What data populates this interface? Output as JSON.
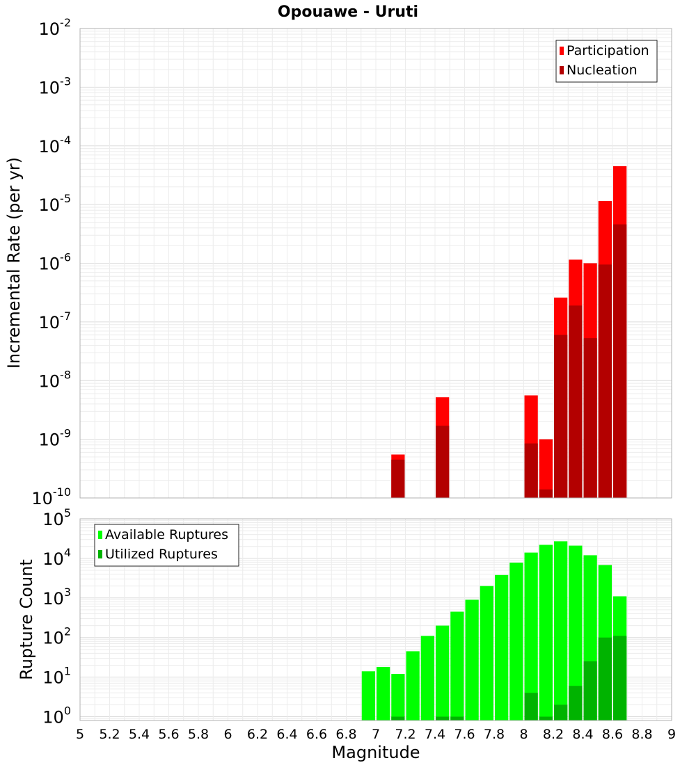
{
  "chart_data": [
    {
      "type": "bar",
      "title": "Opouawe - Uruti",
      "xlabel": "",
      "ylabel": "Incremental Rate (per yr)",
      "y_scale": "log",
      "ylim": [
        1e-10,
        0.01
      ],
      "xlim": [
        5,
        9
      ],
      "y_ticks": [
        {
          "base": "10",
          "exp": "-10"
        },
        {
          "base": "10",
          "exp": "-9"
        },
        {
          "base": "10",
          "exp": "-8"
        },
        {
          "base": "10",
          "exp": "-7"
        },
        {
          "base": "10",
          "exp": "-6"
        },
        {
          "base": "10",
          "exp": "-5"
        },
        {
          "base": "10",
          "exp": "-4"
        },
        {
          "base": "10",
          "exp": "-3"
        },
        {
          "base": "10",
          "exp": "-2"
        }
      ],
      "legend_position": "top-right",
      "grid": true,
      "series": [
        {
          "name": "Participation",
          "color": "#ff0000",
          "points": [
            {
              "x": 7.15,
              "y": 5.5e-10
            },
            {
              "x": 7.45,
              "y": 5.2e-09
            },
            {
              "x": 8.05,
              "y": 5.6e-09
            },
            {
              "x": 8.15,
              "y": 1e-09
            },
            {
              "x": 8.25,
              "y": 2.6e-07
            },
            {
              "x": 8.35,
              "y": 1.15e-06
            },
            {
              "x": 8.45,
              "y": 1e-06
            },
            {
              "x": 8.55,
              "y": 1.15e-05
            },
            {
              "x": 8.65,
              "y": 4.5e-05
            }
          ]
        },
        {
          "name": "Nucleation",
          "color": "#b30000",
          "points": [
            {
              "x": 7.15,
              "y": 4.5e-10
            },
            {
              "x": 7.45,
              "y": 1.7e-09
            },
            {
              "x": 8.05,
              "y": 8.5e-10
            },
            {
              "x": 8.15,
              "y": 1.4e-10
            },
            {
              "x": 8.25,
              "y": 6e-08
            },
            {
              "x": 8.35,
              "y": 1.9e-07
            },
            {
              "x": 8.45,
              "y": 5.3e-08
            },
            {
              "x": 8.55,
              "y": 9.5e-07
            },
            {
              "x": 8.65,
              "y": 4.6e-06
            }
          ]
        }
      ]
    },
    {
      "type": "bar",
      "title": "",
      "xlabel": "Magnitude",
      "ylabel": "Rupture Count",
      "y_scale": "log",
      "ylim": [
        0.8,
        100000.0
      ],
      "xlim": [
        5,
        9
      ],
      "x_ticks": [
        "5",
        "5.2",
        "5.4",
        "5.6",
        "5.8",
        "6",
        "6.2",
        "6.4",
        "6.6",
        "6.8",
        "7",
        "7.2",
        "7.4",
        "7.6",
        "7.8",
        "8",
        "8.2",
        "8.4",
        "8.6",
        "8.8",
        "9"
      ],
      "y_ticks": [
        {
          "base": "10",
          "exp": "0"
        },
        {
          "base": "10",
          "exp": "1"
        },
        {
          "base": "10",
          "exp": "2"
        },
        {
          "base": "10",
          "exp": "3"
        },
        {
          "base": "10",
          "exp": "4"
        },
        {
          "base": "10",
          "exp": "5"
        }
      ],
      "legend_position": "top-left",
      "grid": true,
      "series": [
        {
          "name": "Available Ruptures",
          "color": "#00ff00",
          "points": [
            {
              "x": 6.95,
              "y": 14
            },
            {
              "x": 7.05,
              "y": 18
            },
            {
              "x": 7.15,
              "y": 12
            },
            {
              "x": 7.25,
              "y": 45
            },
            {
              "x": 7.35,
              "y": 110
            },
            {
              "x": 7.45,
              "y": 200
            },
            {
              "x": 7.55,
              "y": 450
            },
            {
              "x": 7.65,
              "y": 900
            },
            {
              "x": 7.75,
              "y": 2000
            },
            {
              "x": 7.85,
              "y": 3800
            },
            {
              "x": 7.95,
              "y": 7800
            },
            {
              "x": 8.05,
              "y": 14000
            },
            {
              "x": 8.15,
              "y": 22000
            },
            {
              "x": 8.25,
              "y": 27000
            },
            {
              "x": 8.35,
              "y": 21000
            },
            {
              "x": 8.45,
              "y": 12000
            },
            {
              "x": 8.55,
              "y": 6800
            },
            {
              "x": 8.65,
              "y": 1100
            }
          ]
        },
        {
          "name": "Utilized Ruptures",
          "color": "#00b300",
          "points": [
            {
              "x": 7.15,
              "y": 1
            },
            {
              "x": 7.45,
              "y": 1
            },
            {
              "x": 7.55,
              "y": 1
            },
            {
              "x": 8.05,
              "y": 4
            },
            {
              "x": 8.15,
              "y": 1
            },
            {
              "x": 8.25,
              "y": 2
            },
            {
              "x": 8.35,
              "y": 6
            },
            {
              "x": 8.45,
              "y": 25
            },
            {
              "x": 8.55,
              "y": 100
            },
            {
              "x": 8.65,
              "y": 110
            }
          ]
        }
      ]
    }
  ]
}
